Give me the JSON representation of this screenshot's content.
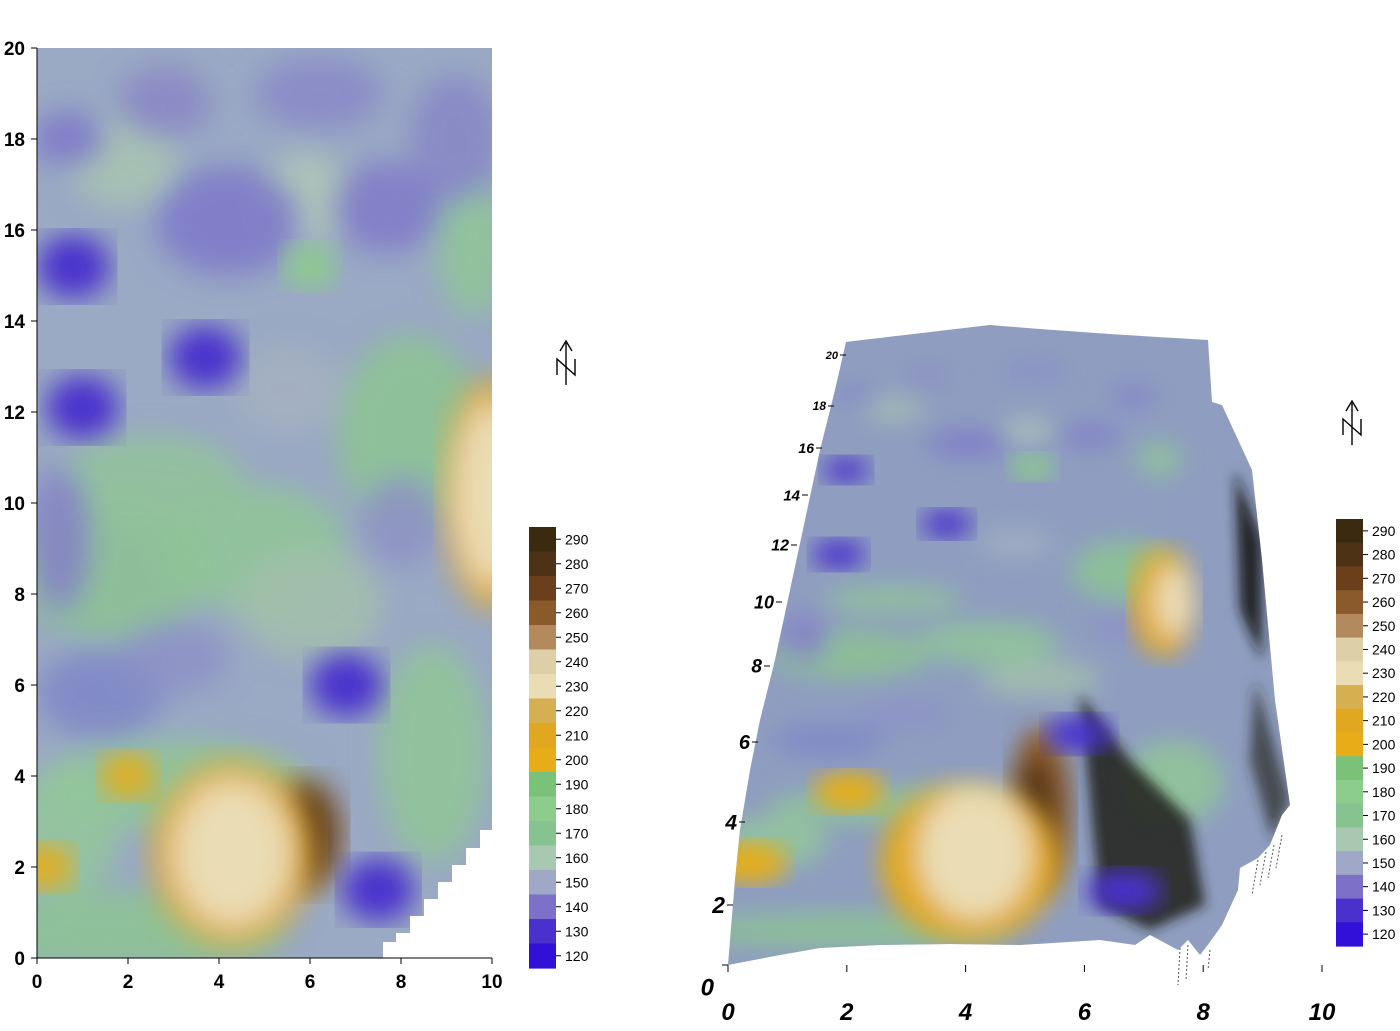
{
  "chart_data": [
    {
      "type": "heatmap",
      "view": "2d-contour-map",
      "title": "",
      "xlabel": "",
      "ylabel": "",
      "xlim": [
        0,
        10
      ],
      "ylim": [
        0,
        20
      ],
      "x_ticks": [
        "0",
        "2",
        "4",
        "6",
        "8",
        "10"
      ],
      "y_ticks": [
        "0",
        "2",
        "4",
        "6",
        "8",
        "10",
        "12",
        "14",
        "16",
        "18",
        "20"
      ],
      "value_range": [
        120,
        290
      ],
      "features": [
        {
          "kind": "peak",
          "x": 5.9,
          "y": 2.7,
          "value": 285
        },
        {
          "kind": "ridge",
          "x": 4.3,
          "y": 2.3,
          "value": 230
        },
        {
          "kind": "peak",
          "x": 10.0,
          "y": 10.2,
          "value": 230
        },
        {
          "kind": "low",
          "x": 0.8,
          "y": 15.2,
          "value": 130
        },
        {
          "kind": "low",
          "x": 3.7,
          "y": 13.2,
          "value": 130
        },
        {
          "kind": "low",
          "x": 6.8,
          "y": 6.0,
          "value": 135
        },
        {
          "kind": "low",
          "x": 1.0,
          "y": 12.1,
          "value": 130
        },
        {
          "kind": "low",
          "x": 7.5,
          "y": 1.5,
          "value": 130
        },
        {
          "kind": "high",
          "x": 6.0,
          "y": 15.2,
          "value": 185
        },
        {
          "kind": "high",
          "x": 2.0,
          "y": 4.0,
          "value": 200
        },
        {
          "kind": "high",
          "x": 0.2,
          "y": 2.0,
          "value": 200
        }
      ],
      "north_arrow": "N",
      "colorbar": {
        "ticks": [
          290,
          280,
          270,
          260,
          250,
          240,
          230,
          220,
          210,
          200,
          190,
          180,
          170,
          160,
          150,
          140,
          130,
          120
        ],
        "colors": [
          "#3a2a10",
          "#4e3216",
          "#6b3f1c",
          "#8a5a2a",
          "#b28a5e",
          "#ddd0a8",
          "#eadcb4",
          "#d6b050",
          "#e0a820",
          "#e7ad18",
          "#7ac27a",
          "#8ccc8c",
          "#86c390",
          "#a9c8b2",
          "#9fa8c6",
          "#7c70c8",
          "#4a30cc",
          "#3310d8"
        ]
      }
    },
    {
      "type": "heatmap",
      "view": "3d-surface",
      "title": "",
      "xlabel": "",
      "ylabel": "",
      "xlim": [
        0,
        10
      ],
      "ylim": [
        0,
        20
      ],
      "x_ticks": [
        "0",
        "2",
        "4",
        "6",
        "8",
        "10"
      ],
      "y_ticks": [
        "0",
        "2",
        "4",
        "6",
        "8",
        "10",
        "12",
        "14",
        "16",
        "18",
        "20"
      ],
      "value_range": [
        120,
        290
      ],
      "north_arrow": "N",
      "colorbar": {
        "ticks": [
          290,
          280,
          270,
          260,
          250,
          240,
          230,
          220,
          210,
          200,
          190,
          180,
          170,
          160,
          150,
          140,
          130,
          120
        ]
      }
    }
  ]
}
